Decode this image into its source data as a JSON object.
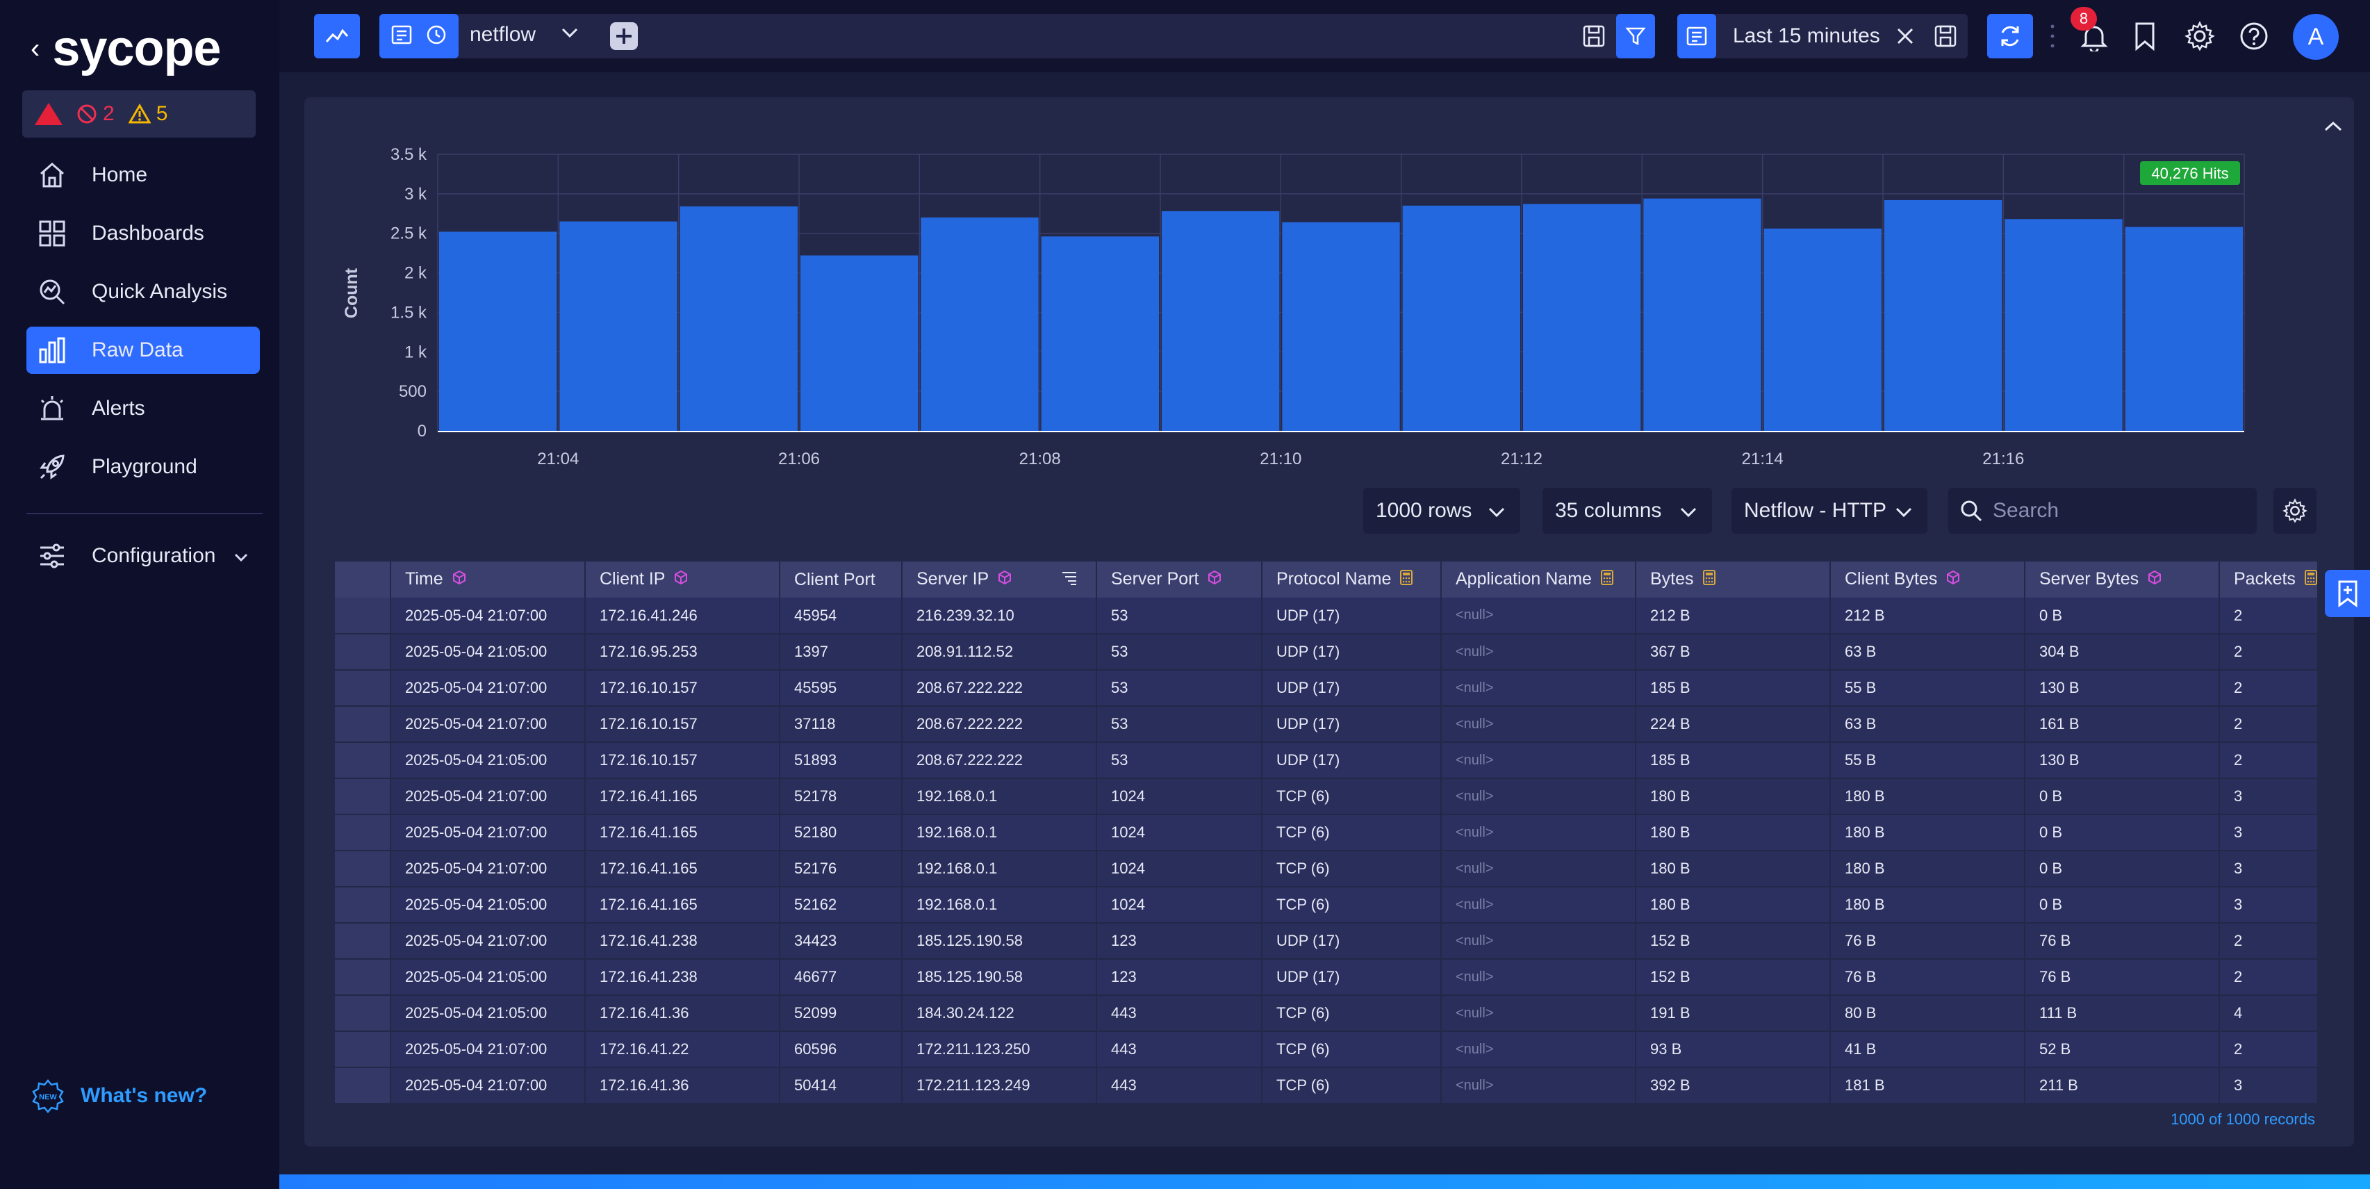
{
  "sidebar": {
    "logo_text": "sycope",
    "alerts": {
      "critical": "2",
      "warning": "5"
    },
    "nav": [
      {
        "label": "Home",
        "icon": "home-icon"
      },
      {
        "label": "Dashboards",
        "icon": "dashboards-icon"
      },
      {
        "label": "Quick Analysis",
        "icon": "quick-analysis-icon"
      },
      {
        "label": "Raw Data",
        "icon": "raw-data-icon",
        "active": true
      },
      {
        "label": "Alerts",
        "icon": "alarm-icon"
      },
      {
        "label": "Playground",
        "icon": "rocket-icon"
      }
    ],
    "config_label": "Configuration",
    "whats_new": "What's new?"
  },
  "topbar": {
    "source": "netflow",
    "time_range": "Last 15 minutes",
    "notifications": "8",
    "avatar": "A"
  },
  "chart": {
    "hits_badge": "40,276 Hits"
  },
  "chart_data": {
    "type": "bar",
    "ylabel": "Count",
    "ylim": [
      0,
      3500
    ],
    "yticks": [
      "0",
      "500",
      "1 k",
      "1.5 k",
      "2 k",
      "2.5 k",
      "3 k",
      "3.5 k"
    ],
    "xticks": [
      "21:04",
      "21:06",
      "21:08",
      "21:10",
      "21:12",
      "21:14",
      "21:16"
    ],
    "values": [
      2520,
      2650,
      2840,
      2220,
      2700,
      2460,
      2780,
      2640,
      2850,
      2870,
      2940,
      2560,
      2920,
      2680,
      2580
    ],
    "color": "#2468df",
    "grid": true
  },
  "controls": {
    "rows": "1000 rows",
    "columns": "35 columns",
    "view": "Netflow - HTTP",
    "search_placeholder": "Search"
  },
  "table": {
    "columns": [
      "Time",
      "Client IP",
      "Client Port",
      "Server IP",
      "Server Port",
      "Protocol Name",
      "Application Name",
      "Bytes",
      "Client Bytes",
      "Server Bytes",
      "Packets"
    ],
    "rows": [
      [
        "2025-05-04 21:07:00",
        "172.16.41.246",
        "45954",
        "216.239.32.10",
        "53",
        "UDP (17)",
        "<null>",
        "212 B",
        "212 B",
        "0 B",
        "2"
      ],
      [
        "2025-05-04 21:05:00",
        "172.16.95.253",
        "1397",
        "208.91.112.52",
        "53",
        "UDP (17)",
        "<null>",
        "367 B",
        "63 B",
        "304 B",
        "2"
      ],
      [
        "2025-05-04 21:07:00",
        "172.16.10.157",
        "45595",
        "208.67.222.222",
        "53",
        "UDP (17)",
        "<null>",
        "185 B",
        "55 B",
        "130 B",
        "2"
      ],
      [
        "2025-05-04 21:07:00",
        "172.16.10.157",
        "37118",
        "208.67.222.222",
        "53",
        "UDP (17)",
        "<null>",
        "224 B",
        "63 B",
        "161 B",
        "2"
      ],
      [
        "2025-05-04 21:05:00",
        "172.16.10.157",
        "51893",
        "208.67.222.222",
        "53",
        "UDP (17)",
        "<null>",
        "185 B",
        "55 B",
        "130 B",
        "2"
      ],
      [
        "2025-05-04 21:07:00",
        "172.16.41.165",
        "52178",
        "192.168.0.1",
        "1024",
        "TCP (6)",
        "<null>",
        "180 B",
        "180 B",
        "0 B",
        "3"
      ],
      [
        "2025-05-04 21:07:00",
        "172.16.41.165",
        "52180",
        "192.168.0.1",
        "1024",
        "TCP (6)",
        "<null>",
        "180 B",
        "180 B",
        "0 B",
        "3"
      ],
      [
        "2025-05-04 21:07:00",
        "172.16.41.165",
        "52176",
        "192.168.0.1",
        "1024",
        "TCP (6)",
        "<null>",
        "180 B",
        "180 B",
        "0 B",
        "3"
      ],
      [
        "2025-05-04 21:05:00",
        "172.16.41.165",
        "52162",
        "192.168.0.1",
        "1024",
        "TCP (6)",
        "<null>",
        "180 B",
        "180 B",
        "0 B",
        "3"
      ],
      [
        "2025-05-04 21:07:00",
        "172.16.41.238",
        "34423",
        "185.125.190.58",
        "123",
        "UDP (17)",
        "<null>",
        "152 B",
        "76 B",
        "76 B",
        "2"
      ],
      [
        "2025-05-04 21:05:00",
        "172.16.41.238",
        "46677",
        "185.125.190.58",
        "123",
        "UDP (17)",
        "<null>",
        "152 B",
        "76 B",
        "76 B",
        "2"
      ],
      [
        "2025-05-04 21:05:00",
        "172.16.41.36",
        "52099",
        "184.30.24.122",
        "443",
        "TCP (6)",
        "<null>",
        "191 B",
        "80 B",
        "111 B",
        "4"
      ],
      [
        "2025-05-04 21:07:00",
        "172.16.41.22",
        "60596",
        "172.211.123.250",
        "443",
        "TCP (6)",
        "<null>",
        "93 B",
        "41 B",
        "52 B",
        "2"
      ],
      [
        "2025-05-04 21:07:00",
        "172.16.41.36",
        "50414",
        "172.211.123.249",
        "443",
        "TCP (6)",
        "<null>",
        "392 B",
        "181 B",
        "211 B",
        "3"
      ]
    ],
    "records": "1000 of 1000 records"
  },
  "colors": {
    "accent": "#2e6bff",
    "hits": "#1fa83a",
    "bar": "#2468df",
    "critical": "#e5213a",
    "warning": "#f5b800",
    "link": "#2f9cff"
  }
}
